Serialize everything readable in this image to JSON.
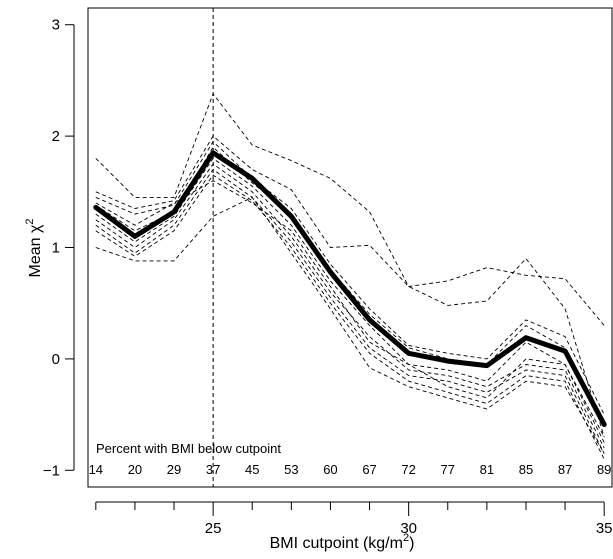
{
  "chart_data": {
    "type": "line",
    "title": "",
    "xlabel": "BMI cutpoint (kg/m",
    "xlabel_sup": "2",
    "xlabel_end": ")",
    "ylabel": "Mean χ",
    "ylabel_sup": "2",
    "xlim": [
      21.8,
      35.2
    ],
    "ylim": [
      -1.15,
      3.15
    ],
    "x_ticks": [
      25,
      30,
      35
    ],
    "y_ticks": [
      -1,
      0,
      1,
      2,
      3
    ],
    "x": [
      22,
      23,
      24,
      25,
      26,
      27,
      28,
      29,
      30,
      31,
      32,
      33,
      34,
      35
    ],
    "reference_line_x": 25,
    "percent_annotation": {
      "title": "Percent with BMI below cutpoint",
      "values": [
        "14",
        "20",
        "29",
        "37",
        "45",
        "53",
        "60",
        "67",
        "72",
        "77",
        "81",
        "85",
        "87",
        "89"
      ]
    },
    "mean_series": [
      1.36,
      1.1,
      1.32,
      1.85,
      1.62,
      1.28,
      0.78,
      0.35,
      0.05,
      -0.02,
      -0.06,
      0.19,
      0.07,
      -0.59
    ],
    "series": [
      {
        "values": [
          1.8,
          1.45,
          1.45,
          2.38,
          1.92,
          1.78,
          1.62,
          1.32,
          0.65,
          0.7,
          0.82,
          0.75,
          0.72,
          0.3
        ]
      },
      {
        "values": [
          1.5,
          1.35,
          1.42,
          2.0,
          1.7,
          1.52,
          1.0,
          1.02,
          0.65,
          0.48,
          0.52,
          0.9,
          0.45,
          -0.7
        ]
      },
      {
        "values": [
          1.45,
          1.3,
          1.38,
          1.95,
          1.62,
          1.35,
          0.85,
          0.45,
          0.12,
          0.05,
          0.0,
          0.35,
          0.2,
          -0.5
        ]
      },
      {
        "values": [
          1.38,
          1.15,
          1.32,
          1.9,
          1.58,
          1.3,
          0.8,
          0.4,
          0.1,
          0.0,
          -0.05,
          0.3,
          0.1,
          -0.55
        ]
      },
      {
        "values": [
          1.3,
          1.05,
          1.28,
          1.8,
          1.55,
          1.2,
          0.7,
          0.3,
          -0.05,
          -0.1,
          -0.2,
          0.15,
          -0.05,
          -0.75
        ]
      },
      {
        "values": [
          1.25,
          1.0,
          1.25,
          1.75,
          1.5,
          1.1,
          0.6,
          0.2,
          -0.1,
          -0.15,
          -0.25,
          -0.05,
          -0.1,
          -0.8
        ]
      },
      {
        "values": [
          1.2,
          0.95,
          1.2,
          1.7,
          1.45,
          1.05,
          0.55,
          0.1,
          -0.15,
          -0.2,
          -0.3,
          -0.1,
          -0.15,
          -0.85
        ]
      },
      {
        "values": [
          1.15,
          0.92,
          1.15,
          1.65,
          1.42,
          1.0,
          0.5,
          0.05,
          -0.2,
          -0.3,
          -0.4,
          -0.15,
          -0.2,
          -0.9
        ]
      },
      {
        "values": [
          1.0,
          0.88,
          0.88,
          1.28,
          1.45,
          0.95,
          0.45,
          -0.08,
          -0.25,
          -0.35,
          -0.45,
          -0.2,
          -0.25,
          -0.85
        ]
      },
      {
        "values": [
          1.4,
          1.2,
          1.4,
          1.6,
          1.4,
          1.15,
          0.65,
          0.15,
          -0.05,
          -0.25,
          -0.35,
          0.0,
          -0.05,
          -0.7
        ]
      }
    ],
    "grid": false,
    "legend": "none"
  }
}
